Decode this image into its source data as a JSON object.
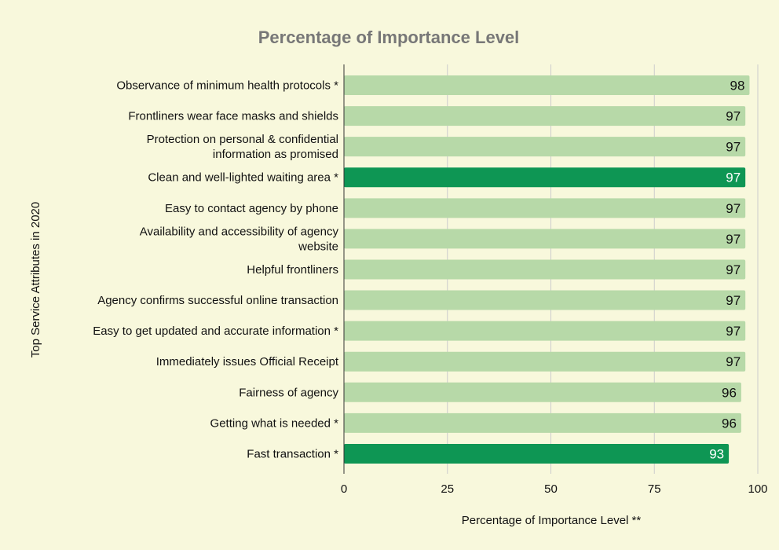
{
  "colors": {
    "background": "#f8f8dc",
    "bar_default": "#b7d9a8",
    "bar_highlight": "#0e9654",
    "label_on_default": "#111111",
    "label_on_highlight": "#ffffff",
    "title": "#777777"
  },
  "chart_data": {
    "type": "bar",
    "orientation": "horizontal",
    "title": "Percentage of Importance Level",
    "xlabel": "Percentage of Importance Level **",
    "ylabel": "Top Service Attributes in 2020",
    "xlim": [
      0,
      100
    ],
    "xticks": [
      0,
      25,
      50,
      75,
      100
    ],
    "grid": true,
    "categories": [
      [
        "Observance of minimum health protocols *"
      ],
      [
        "Frontliners wear face masks and shields"
      ],
      [
        "Protection on personal & confidential",
        "information as promised"
      ],
      [
        "Clean and well-lighted waiting area *"
      ],
      [
        "Easy to contact agency by phone"
      ],
      [
        "Availability and accessibility of agency",
        "website"
      ],
      [
        "Helpful frontliners"
      ],
      [
        "Agency confirms successful online transaction"
      ],
      [
        "Easy to get updated and accurate information *"
      ],
      [
        "Immediately issues Official Receipt"
      ],
      [
        "Fairness of agency"
      ],
      [
        "Getting what is needed *"
      ],
      [
        "Fast transaction *"
      ]
    ],
    "values": [
      98,
      97,
      97,
      97,
      97,
      97,
      97,
      97,
      97,
      97,
      96,
      96,
      93
    ],
    "highlighted": [
      false,
      false,
      false,
      true,
      false,
      false,
      false,
      false,
      false,
      false,
      false,
      false,
      true
    ]
  }
}
